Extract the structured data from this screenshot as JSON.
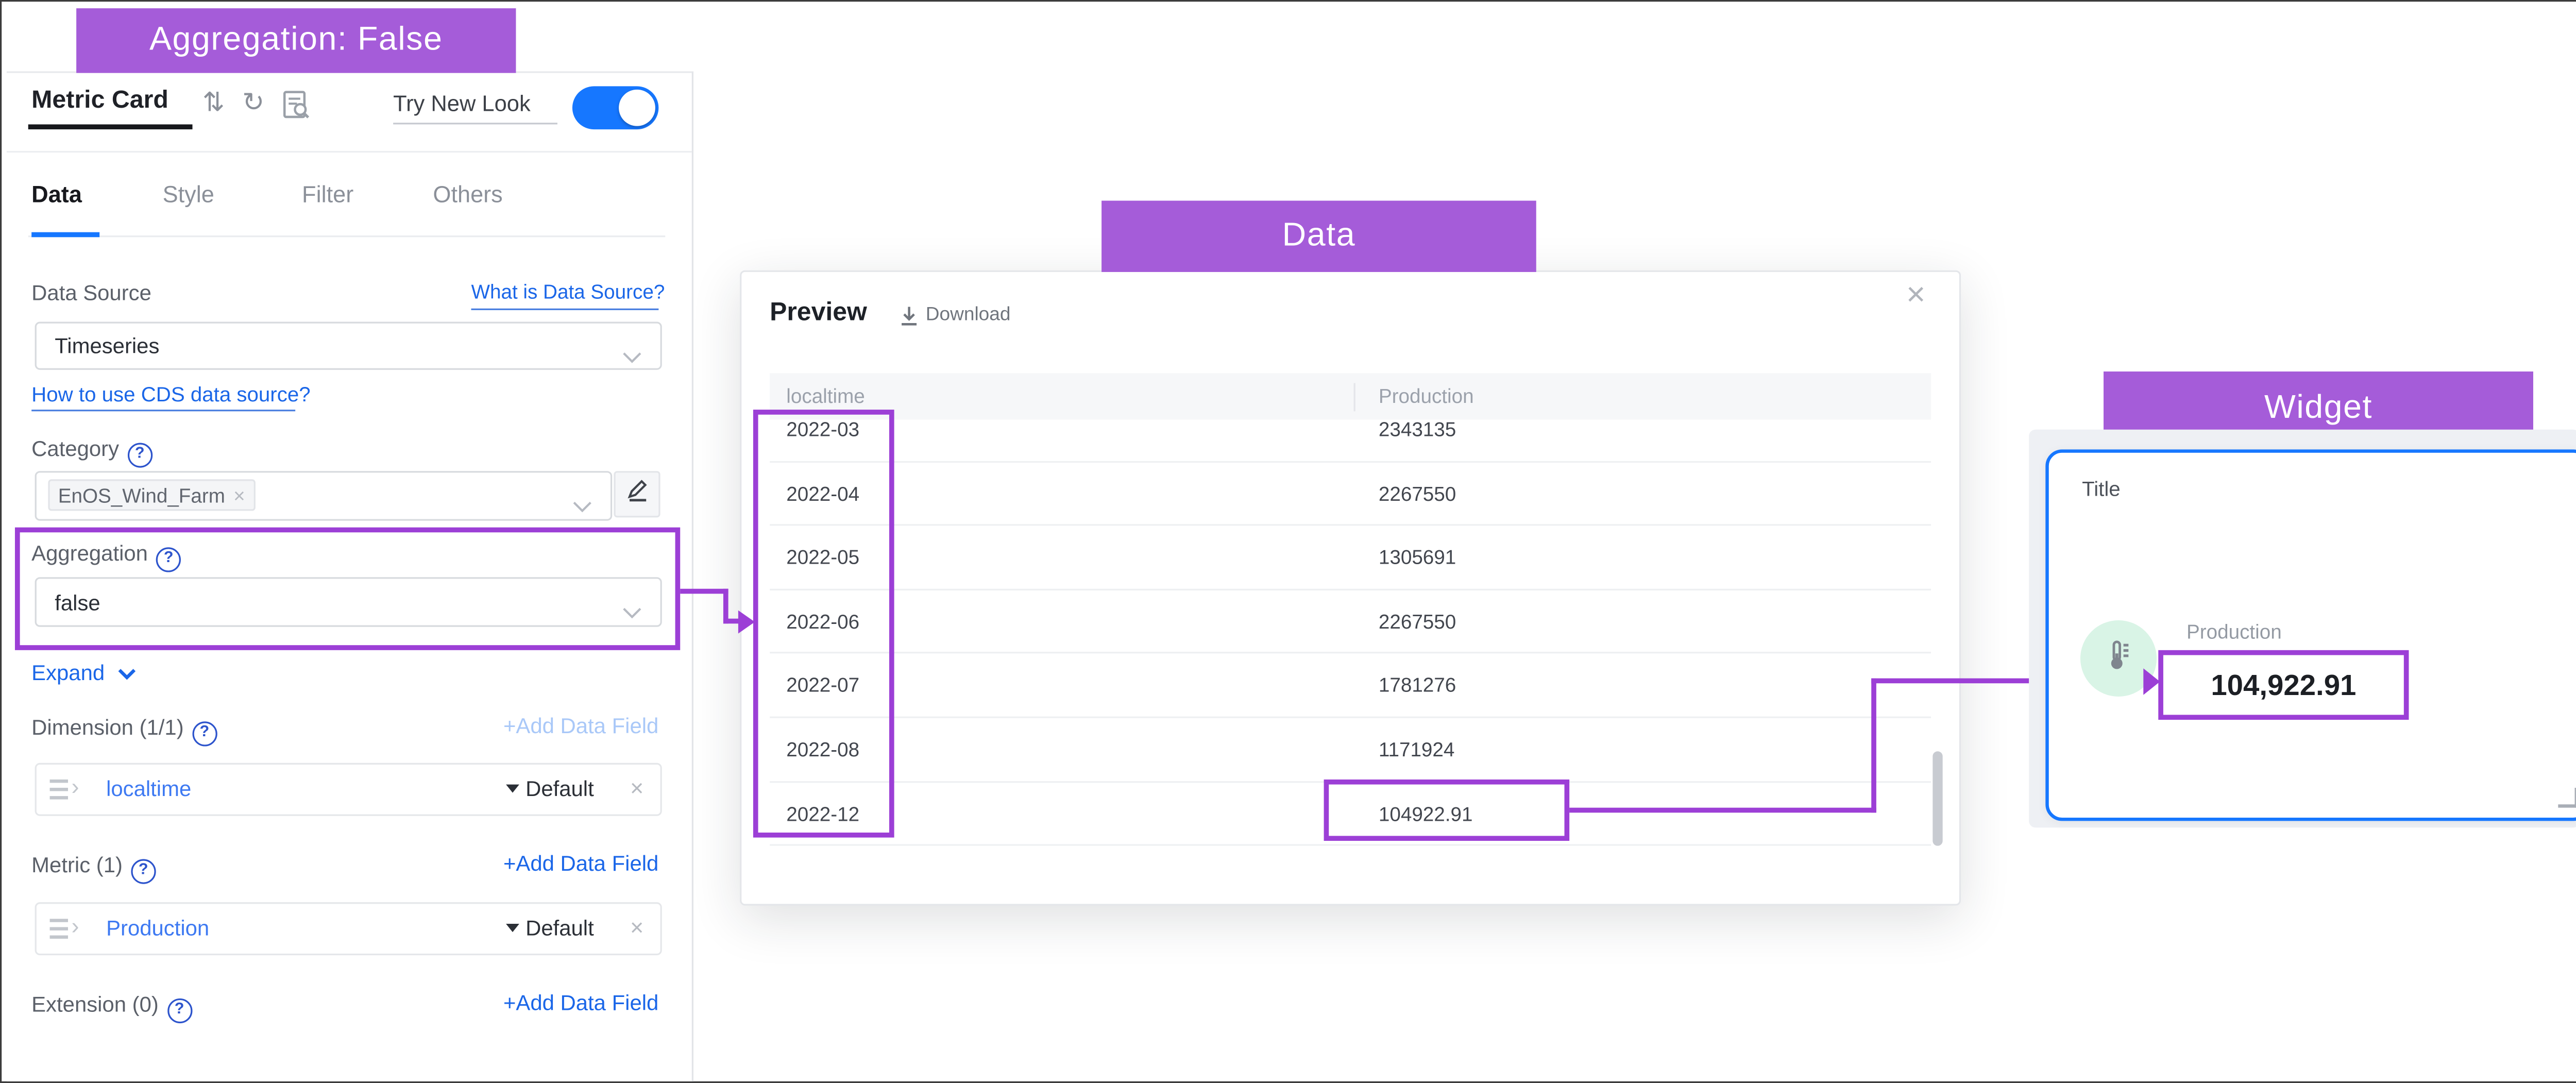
{
  "callouts": {
    "config": "Aggregation: False",
    "data": "Data",
    "widget": "Widget"
  },
  "panel": {
    "title": "Metric Card",
    "try_new_look": {
      "label": "Try New Look",
      "enabled": true
    },
    "tabs": [
      {
        "label": "Data",
        "active": true
      },
      {
        "label": "Style",
        "active": false
      },
      {
        "label": "Filter",
        "active": false
      },
      {
        "label": "Others",
        "active": false
      }
    ],
    "data_source": {
      "label": "Data Source",
      "help_link": "What is Data Source?",
      "value": "Timeseries",
      "cds_link": "How to use CDS data source?"
    },
    "category": {
      "label": "Category",
      "tag": "EnOS_Wind_Farm"
    },
    "aggregation": {
      "label": "Aggregation",
      "value": "false"
    },
    "expand_label": "Expand",
    "dimension": {
      "label": "Dimension (1/1)",
      "add_label": "+Add Data Field",
      "field": {
        "name": "localtime",
        "mode": "Default"
      }
    },
    "metric": {
      "label": "Metric (1)",
      "add_label": "+Add Data Field",
      "field": {
        "name": "Production",
        "mode": "Default"
      }
    },
    "extension": {
      "label": "Extension (0)",
      "add_label": "+Add Data Field"
    }
  },
  "preview": {
    "title": "Preview",
    "download_label": "Download",
    "columns": [
      "localtime",
      "Production"
    ],
    "rows": [
      [
        "2022-03",
        "2343135"
      ],
      [
        "2022-04",
        "2267550"
      ],
      [
        "2022-05",
        "1305691"
      ],
      [
        "2022-06",
        "2267550"
      ],
      [
        "2022-07",
        "1781276"
      ],
      [
        "2022-08",
        "1171924"
      ],
      [
        "2022-12",
        "104922.91"
      ]
    ]
  },
  "widget": {
    "title": "Title",
    "metric_label": "Production",
    "value": "104,922.91"
  },
  "icons": {
    "help": "?",
    "sort": "⇅",
    "refresh": "↻",
    "close": "×",
    "tag_close": "×",
    "remove": "×",
    "drag_chevron": "›"
  },
  "colors": {
    "callout_purple": "#a55cd9",
    "highlight_purple": "#9c3fd6",
    "accent_blue": "#1677ff"
  }
}
